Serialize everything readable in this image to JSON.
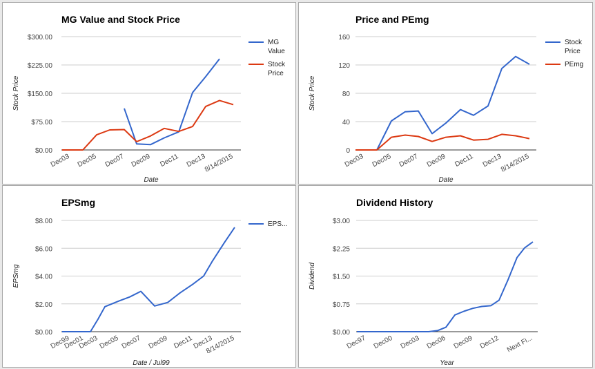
{
  "chart_data": [
    {
      "type": "line",
      "title": "MG Value and Stock Price",
      "xlabel": "Date",
      "ylabel": "Stock Price",
      "x_ticks": [
        "Dec03",
        "Dec05",
        "Dec07",
        "Dec09",
        "Dec11",
        "Dec13",
        "8/14/2015"
      ],
      "y_ticks": [
        "$0.00",
        "$75.00",
        "$150.00",
        "$225.00",
        "$300.00"
      ],
      "ylim": [
        0,
        300
      ],
      "legend_position": "right",
      "grid": true,
      "series": [
        {
          "name": "MG Value",
          "color": "#3366cc",
          "x": [
            "Dec07",
            "Dec08",
            "Dec09",
            "Dec10",
            "Dec11",
            "Dec12",
            "Dec13",
            "Dec14"
          ],
          "values": [
            110,
            16,
            14,
            32,
            48,
            152,
            194,
            241
          ]
        },
        {
          "name": "Stock Price",
          "color": "#dc3912",
          "x": [
            "Dec02",
            "Dec03",
            "Dec04",
            "Dec05",
            "Dec06",
            "Dec07",
            "Dec08",
            "Dec09",
            "Dec10",
            "Dec11",
            "Dec12",
            "Dec13",
            "Dec14",
            "8/14/2015"
          ],
          "values": [
            0,
            0,
            0,
            40,
            53,
            54,
            22,
            37,
            57,
            49,
            62,
            115,
            131,
            120
          ]
        }
      ]
    },
    {
      "type": "line",
      "title": "Price and PEmg",
      "xlabel": "Date",
      "ylabel": "Stock Price",
      "x_ticks": [
        "Dec03",
        "Dec05",
        "Dec07",
        "Dec09",
        "Dec11",
        "Dec13",
        "8/14/2015"
      ],
      "y_ticks": [
        "0",
        "40",
        "80",
        "120",
        "160"
      ],
      "ylim": [
        0,
        160
      ],
      "legend_position": "right",
      "grid": true,
      "series": [
        {
          "name": "Stock Price",
          "color": "#3366cc",
          "x": [
            "Dec02",
            "Dec03",
            "Dec04",
            "Dec05",
            "Dec06",
            "Dec07",
            "Dec08",
            "Dec09",
            "Dec10",
            "Dec11",
            "Dec12",
            "Dec13",
            "Dec14",
            "8/14/2015"
          ],
          "values": [
            0,
            0,
            0,
            41,
            54,
            55,
            23,
            38,
            57,
            49,
            62,
            115,
            132,
            121
          ]
        },
        {
          "name": "PEmg",
          "color": "#dc3912",
          "x": [
            "Dec02",
            "Dec03",
            "Dec04",
            "Dec05",
            "Dec06",
            "Dec07",
            "Dec08",
            "Dec09",
            "Dec10",
            "Dec11",
            "Dec12",
            "Dec13",
            "Dec14",
            "8/14/2015"
          ],
          "values": [
            0,
            0,
            0,
            18,
            21,
            19,
            12,
            18,
            20,
            14,
            15,
            22,
            20,
            16
          ]
        }
      ]
    },
    {
      "type": "line",
      "title": "EPSmg",
      "xlabel": "Date / Jul99",
      "ylabel": "EPSmg",
      "x_ticks": [
        "Dec99",
        "Dec01",
        "Dec03",
        "Dec05",
        "Dec07",
        "Dec09",
        "Dec11",
        "Dec13",
        "8/14/2015"
      ],
      "y_ticks": [
        "$0.00",
        "$2.00",
        "$4.00",
        "$6.00",
        "$8.00"
      ],
      "ylim": [
        0,
        8
      ],
      "legend_position": "right",
      "grid": true,
      "series": [
        {
          "name": "EPS...",
          "color": "#3366cc",
          "x": [
            "Jul99",
            "Dec99",
            "Dec00",
            "Dec01",
            "Dec02",
            "Dec03",
            "Dec04",
            "Dec05",
            "Dec06",
            "Dec07",
            "Dec08",
            "Dec09",
            "Dec10",
            "Dec11",
            "Dec12",
            "Dec13",
            "Dec14",
            "8/14/2015"
          ],
          "values": [
            0,
            0,
            0,
            0,
            0,
            0.9,
            1.8,
            2.2,
            2.5,
            2.9,
            1.85,
            2.1,
            2.8,
            3.4,
            4.0,
            5.1,
            6.4,
            7.5
          ]
        }
      ]
    },
    {
      "type": "line",
      "title": "Dividend History",
      "xlabel": "Year",
      "ylabel": "Dividend",
      "x_ticks": [
        "Dec97",
        "Dec00",
        "Dec03",
        "Dec06",
        "Dec09",
        "Dec12",
        "Next Fi..."
      ],
      "y_ticks": [
        "$0.00",
        "$0.75",
        "$1.50",
        "$2.25",
        "$3.00"
      ],
      "ylim": [
        0,
        3
      ],
      "legend_position": "none",
      "grid": true,
      "series": [
        {
          "color": "#3366cc",
          "x": [
            "Dec96",
            "Dec97",
            "Dec98",
            "Dec99",
            "Dec00",
            "Dec01",
            "Dec02",
            "Dec03",
            "Dec04",
            "Dec05",
            "Dec06",
            "Dec07",
            "Dec08",
            "Dec09",
            "Dec10",
            "Dec11",
            "Dec12",
            "Dec13",
            "Dec14",
            "Dec15",
            "Next Fi..."
          ],
          "values": [
            0,
            0,
            0,
            0,
            0,
            0,
            0,
            0,
            0,
            0.03,
            0.12,
            0.45,
            0.55,
            0.63,
            0.68,
            0.7,
            0.85,
            1.4,
            2.0,
            2.26,
            2.42
          ]
        }
      ]
    }
  ]
}
